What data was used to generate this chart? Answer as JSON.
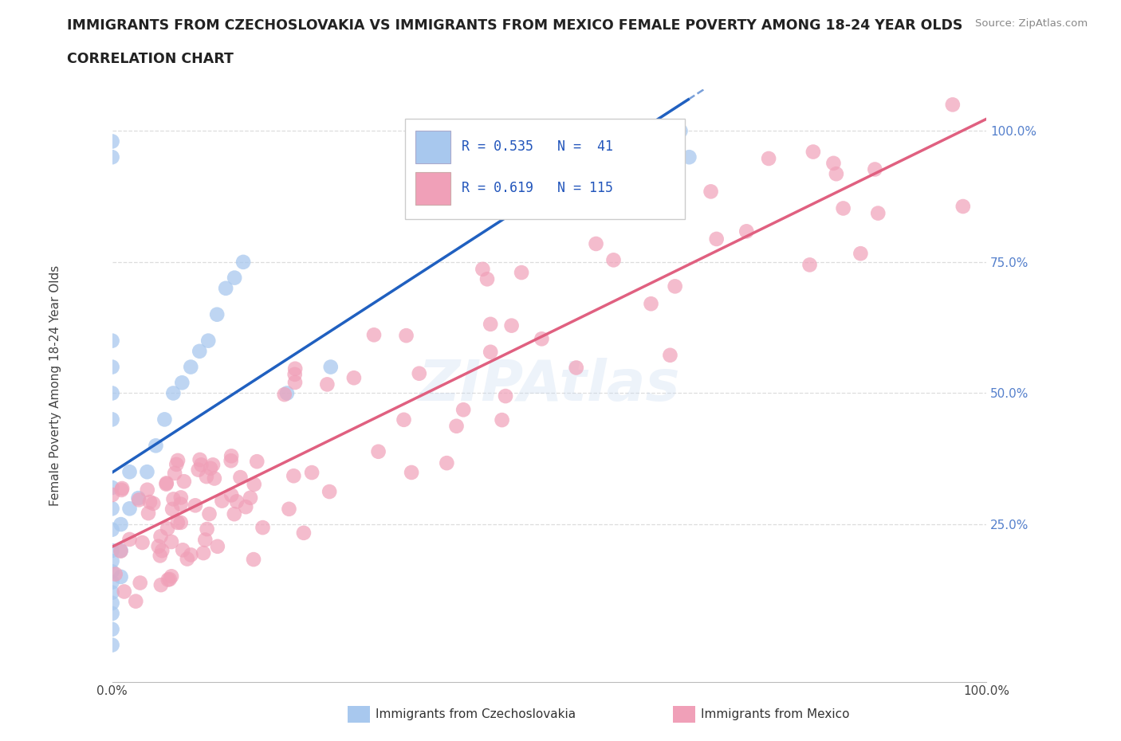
{
  "title_line1": "IMMIGRANTS FROM CZECHOSLOVAKIA VS IMMIGRANTS FROM MEXICO FEMALE POVERTY AMONG 18-24 YEAR OLDS",
  "title_line2": "CORRELATION CHART",
  "source": "Source: ZipAtlas.com",
  "ylabel": "Female Poverty Among 18-24 Year Olds",
  "color_czech": "#A8C8EE",
  "color_mexico": "#F0A0B8",
  "line_color_czech": "#2060C0",
  "line_color_mexico": "#E06080",
  "background_color": "#FFFFFF",
  "watermark": "ZIPAtlas",
  "grid_color": "#DDDDDD",
  "tick_color": "#5580CC",
  "label_color": "#333333"
}
